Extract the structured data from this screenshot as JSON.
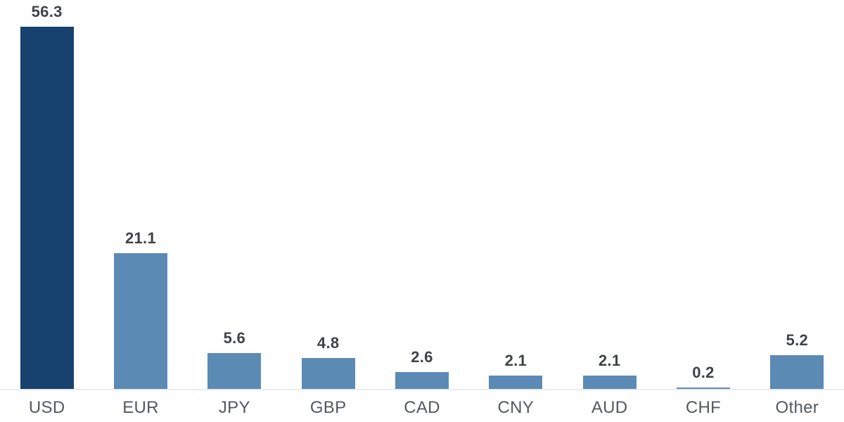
{
  "chart_data": {
    "type": "bar",
    "title": "",
    "xlabel": "",
    "ylabel": "",
    "categories": [
      "USD",
      "EUR",
      "JPY",
      "GBP",
      "CAD",
      "CNY",
      "AUD",
      "CHF",
      "Other"
    ],
    "values": [
      56.3,
      21.1,
      5.6,
      4.8,
      2.6,
      2.1,
      2.1,
      0.2,
      5.2
    ],
    "data_labels": [
      "56.3",
      "21.1",
      "5.6",
      "4.8",
      "2.6",
      "2.1",
      "2.1",
      "0.2",
      "5.2"
    ],
    "ylim": [
      0,
      60.5
    ],
    "grid": false,
    "legend": false,
    "axis_labels_shown": false,
    "highlight_index": 0,
    "colors": {
      "highlight_bar": "#17416F",
      "bar": "#5B8AB5",
      "value_label": "#3F4347",
      "category_label": "#54585D",
      "axis_line": "#ECECEC",
      "background": "#FFFFFF"
    }
  }
}
